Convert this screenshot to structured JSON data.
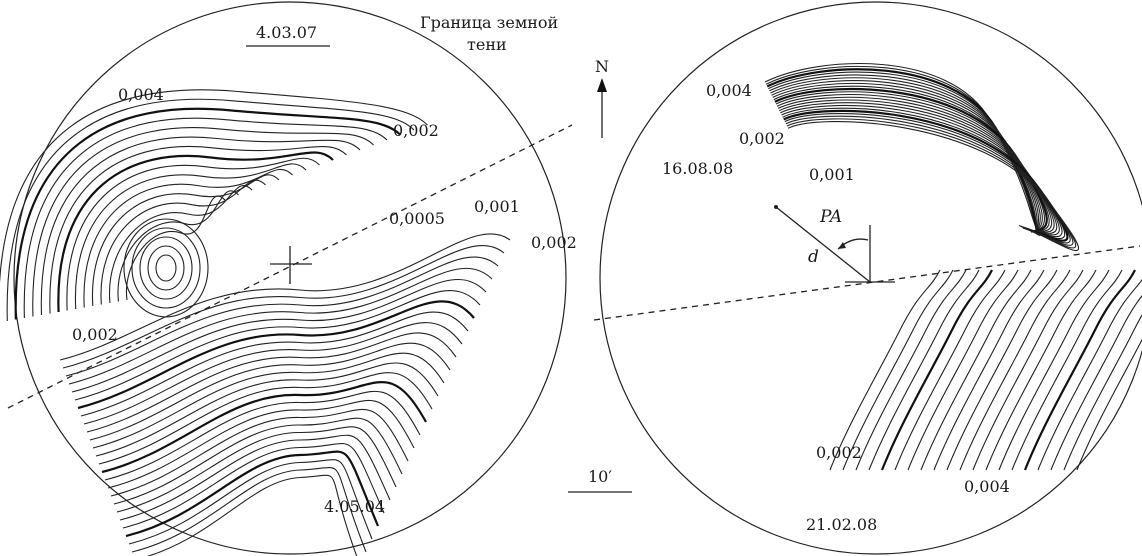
{
  "left_disk": {
    "date_top": "4.03.07",
    "date_bottom": "4.05.04",
    "shadow_label_line1": "Граница земной",
    "shadow_label_line2": "тени",
    "contour_labels": {
      "c004": "0,004",
      "c002_top": "0,002",
      "c002_left": "0,002",
      "c00005": "0,0005",
      "c0001": "0,001",
      "c002_right": "0,002"
    }
  },
  "right_disk": {
    "date_top": "16.08.08",
    "date_bottom": "21.02.08",
    "contour_labels": {
      "c004_top": "0,004",
      "c002_top": "0,002",
      "c001": "0,001",
      "c002_bottom": "0,002",
      "c004_bottom": "0,004"
    },
    "angle_label": "PA",
    "distance_label": "d"
  },
  "north_label": "N",
  "scale_label": "10′"
}
